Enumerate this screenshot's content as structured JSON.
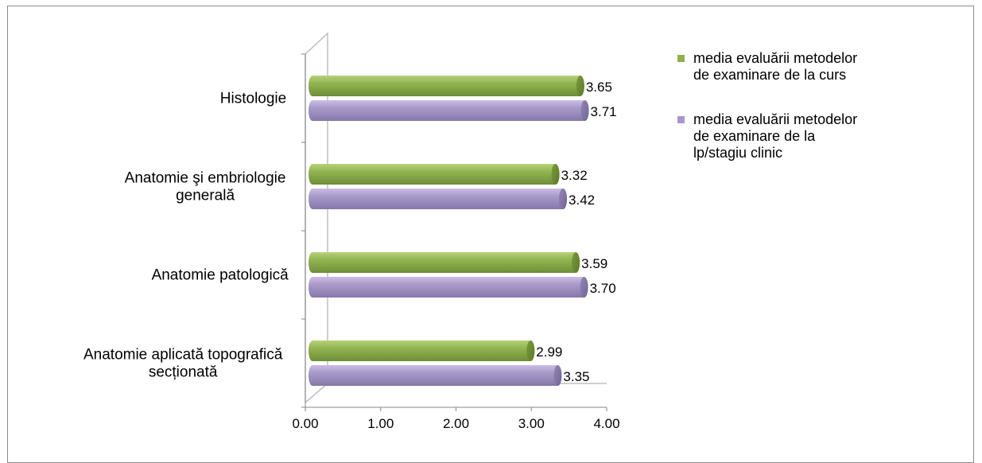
{
  "chart_data": {
    "type": "bar",
    "orientation": "horizontal",
    "style": "3d-cylinder",
    "categories": [
      "Histologie",
      "Anatomie şi embriologie generală",
      "Anatomie patologică",
      "Anatomie aplicată topografică secționată"
    ],
    "category_lines": [
      [
        "Histologie"
      ],
      [
        "Anatomie şi embriologie",
        "generală"
      ],
      [
        "Anatomie patologică"
      ],
      [
        "Anatomie aplicată topografică",
        "secționată"
      ]
    ],
    "series": [
      {
        "name": "media evaluării metodelor de examinare de la curs",
        "name_lines": [
          "media evaluării metodelor",
          "de examinare de la curs"
        ],
        "color": "#8fb04f",
        "values": [
          3.65,
          3.32,
          3.59,
          2.99
        ],
        "labels": [
          "3.65",
          "3.32",
          "3.59",
          "2.99"
        ]
      },
      {
        "name": "media evaluării metodelor de examinare de la lp/stagiu clinic",
        "name_lines": [
          "media evaluării metodelor",
          "de examinare de la",
          "lp/stagiu clinic"
        ],
        "color": "#a897c9",
        "values": [
          3.71,
          3.42,
          3.7,
          3.35
        ],
        "labels": [
          "3.71",
          "3.42",
          "3.70",
          "3.35"
        ]
      }
    ],
    "xlim": [
      0,
      4
    ],
    "xticks": [
      "0.00",
      "1.00",
      "2.00",
      "3.00",
      "4.00"
    ],
    "legend": "right",
    "grid": false,
    "title": "",
    "xlabel": "",
    "ylabel": ""
  }
}
